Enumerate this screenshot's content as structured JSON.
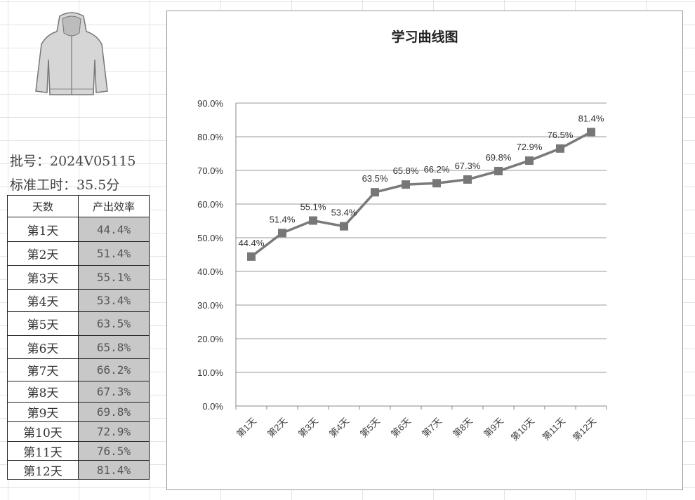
{
  "sheet": {
    "batch": "批号：2024V05115",
    "std_time": "标准工时：35.5分",
    "table": {
      "headers": [
        "天数",
        "产出效率"
      ],
      "rows": [
        [
          "第1天",
          "44.4%"
        ],
        [
          "第2天",
          "51.4%"
        ],
        [
          "第3天",
          "55.1%"
        ],
        [
          "第4天",
          "53.4%"
        ],
        [
          "第5天",
          "63.5%"
        ],
        [
          "第6天",
          "65.8%"
        ],
        [
          "第7天",
          "66.2%"
        ],
        [
          "第8天",
          "67.3%"
        ],
        [
          "第9天",
          "69.8%"
        ],
        [
          "第10天",
          "72.9%"
        ],
        [
          "第11天",
          "76.5%"
        ],
        [
          "第12天",
          "81.4%"
        ]
      ]
    }
  },
  "chart_data": {
    "type": "line",
    "title": "学习曲线图",
    "categories": [
      "第1天",
      "第2天",
      "第3天",
      "第4天",
      "第5天",
      "第6天",
      "第7天",
      "第8天",
      "第9天",
      "第10天",
      "第11天",
      "第12天"
    ],
    "values": [
      44.4,
      51.4,
      55.1,
      53.4,
      63.5,
      65.8,
      66.2,
      67.3,
      69.8,
      72.9,
      76.5,
      81.4
    ],
    "data_labels": [
      "44.4%",
      "51.4%",
      "55.1%",
      "53.4%",
      "63.5%",
      "65.8%",
      "66.2%",
      "67.3%",
      "69.8%",
      "72.9%",
      "76.5%",
      "81.4%"
    ],
    "yticks": [
      "0.0%",
      "10.0%",
      "20.0%",
      "30.0%",
      "40.0%",
      "50.0%",
      "60.0%",
      "70.0%",
      "80.0%",
      "90.0%"
    ],
    "ylim": [
      0,
      90
    ],
    "grid": true,
    "legend": "none",
    "marker": "square",
    "color": "#7a7a7a"
  }
}
